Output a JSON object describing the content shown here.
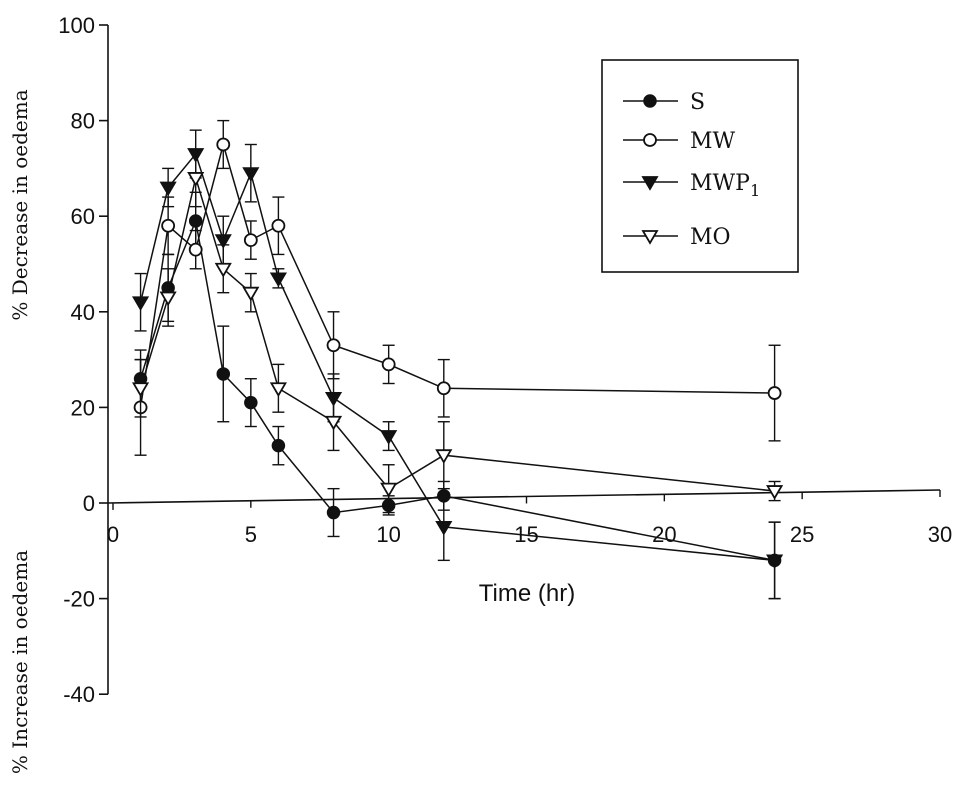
{
  "chart_data": {
    "type": "line",
    "xlabel": "Time (hr)",
    "ylabel_upper": "% Decrease in oedema",
    "ylabel_lower": "% Increase in oedema",
    "xlim": [
      0,
      30
    ],
    "ylim": [
      -40,
      100
    ],
    "x_ticks": [
      0,
      5,
      10,
      15,
      20,
      25,
      30
    ],
    "y_ticks": [
      -40,
      -20,
      0,
      20,
      40,
      60,
      80,
      100
    ],
    "grid": false,
    "legend_position": "top-right",
    "series": [
      {
        "name": "S",
        "marker": "filled-circle",
        "x": [
          1,
          2,
          3,
          4,
          5,
          6,
          8,
          10,
          12,
          24
        ],
        "y": [
          26,
          45,
          59,
          27,
          21,
          12,
          -2,
          -0.5,
          1.5,
          -12
        ],
        "err": [
          6,
          7,
          6,
          10,
          5,
          4,
          5,
          2,
          3,
          8
        ]
      },
      {
        "name": "MW",
        "marker": "open-circle",
        "x": [
          1,
          2,
          3,
          4,
          5,
          6,
          8,
          10,
          12,
          24
        ],
        "y": [
          20,
          58,
          53,
          75,
          55,
          58,
          33,
          29,
          24,
          23
        ],
        "err": [
          10,
          6,
          4,
          5,
          4,
          6,
          7,
          4,
          6,
          10
        ]
      },
      {
        "name": "MWP",
        "name_subscript": "1",
        "marker": "filled-triangle-down",
        "x": [
          1,
          2,
          3,
          4,
          5,
          6,
          8,
          10,
          12,
          24
        ],
        "y": [
          42,
          66,
          73,
          55,
          69,
          47,
          22,
          14,
          -5,
          -12
        ],
        "err": [
          6,
          4,
          5,
          5,
          6,
          2,
          5,
          3,
          7,
          8
        ]
      },
      {
        "name": "MO",
        "marker": "open-triangle-down",
        "x": [
          1,
          2,
          3,
          4,
          5,
          6,
          8,
          10,
          12,
          24
        ],
        "y": [
          24,
          43,
          68,
          49,
          44,
          24,
          17,
          3,
          10,
          2.5
        ],
        "err": [
          6,
          6,
          6,
          5,
          4,
          5,
          6,
          5,
          7,
          2
        ]
      }
    ]
  }
}
